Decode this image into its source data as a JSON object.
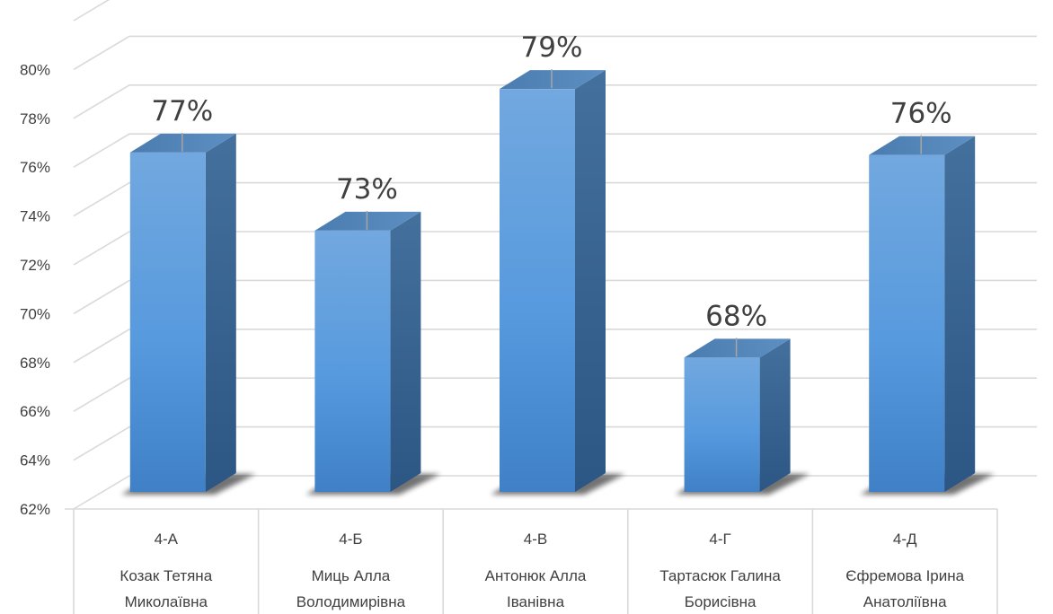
{
  "chart_data": {
    "type": "bar",
    "style": "3d-column",
    "categories": [
      {
        "group": "4-А",
        "teacher_line1": "Козак Тетяна",
        "teacher_line2": "Миколаївна"
      },
      {
        "group": "4-Б",
        "teacher_line1": "Миць Алла",
        "teacher_line2": "Володимирівна"
      },
      {
        "group": "4-В",
        "teacher_line1": "Антонюк Алла",
        "teacher_line2": "Іванівна"
      },
      {
        "group": "4-Г",
        "teacher_line1": "Тартасюк Галина",
        "teacher_line2": "Борисівна"
      },
      {
        "group": "4-Д",
        "teacher_line1": "Єфремова Ірина",
        "teacher_line2": "Анатоліївна"
      }
    ],
    "values": [
      76.6,
      73.4,
      79.2,
      68.2,
      76.5
    ],
    "data_labels": [
      "77%",
      "73%",
      "79%",
      "68%",
      "76%"
    ],
    "yticks": [
      "62%",
      "64%",
      "66%",
      "68%",
      "70%",
      "72%",
      "74%",
      "76%",
      "78%",
      "80%"
    ],
    "ylim": [
      62,
      82
    ],
    "grid": true,
    "bar_color": "#5b9bd5",
    "title": "",
    "xlabel": "",
    "ylabel": ""
  }
}
